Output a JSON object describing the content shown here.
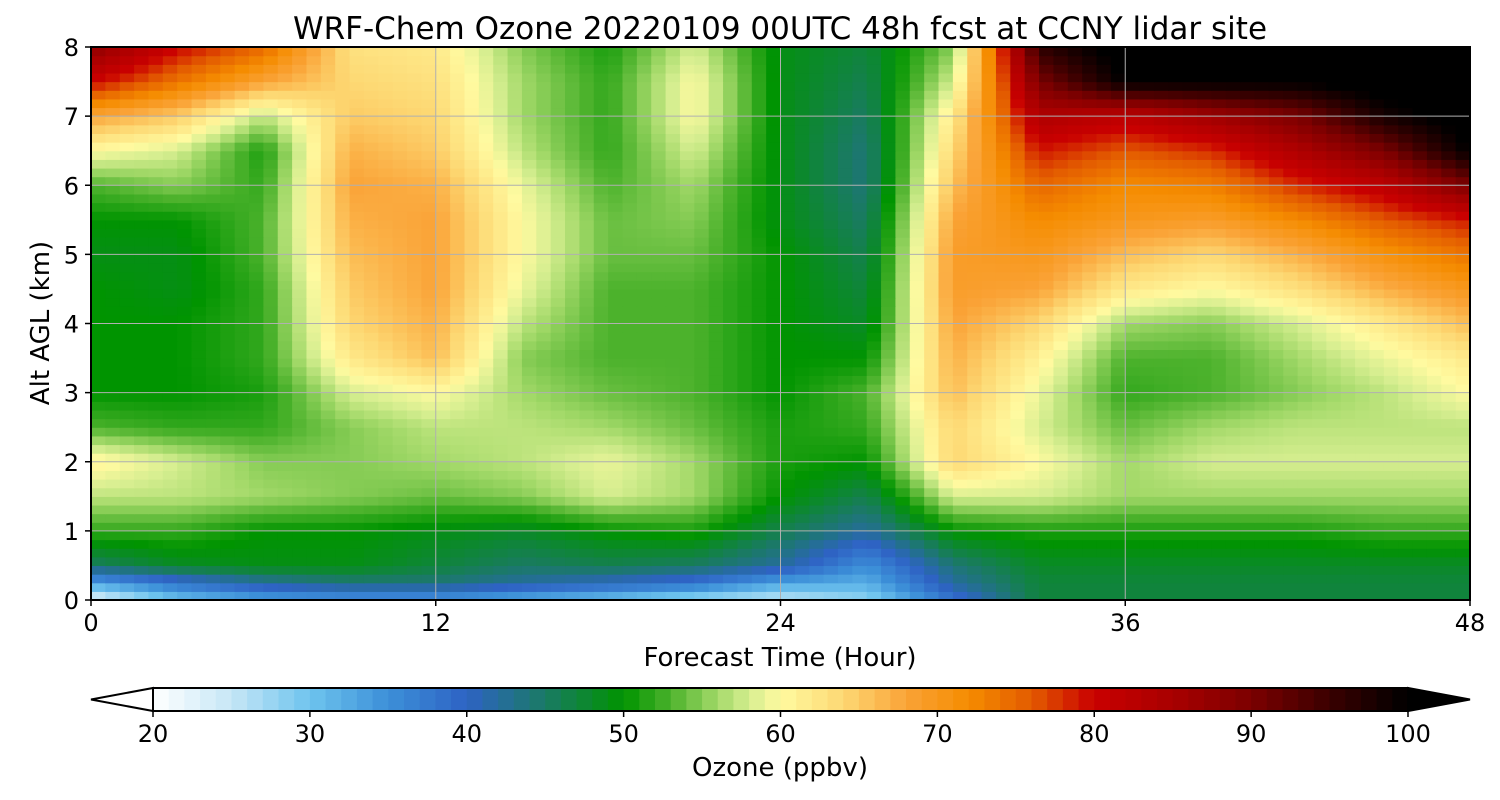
{
  "chart_data": [
    {
      "type": "heatmap",
      "title": "WRF-Chem Ozone  20220109 00UTC 48h fcst at CCNY lidar site",
      "xlabel": "Forecast Time (Hour)",
      "ylabel": "Alt AGL (km)",
      "xlim": [
        0,
        48
      ],
      "ylim": [
        0,
        8
      ],
      "xticks": [
        0,
        12,
        24,
        36,
        48
      ],
      "yticks": [
        0,
        1,
        2,
        3,
        4,
        5,
        6,
        7,
        8
      ],
      "grid": true,
      "x": [
        0,
        3,
        6,
        9,
        12,
        15,
        18,
        21,
        24,
        27,
        30,
        33,
        36,
        39,
        42,
        45,
        48
      ],
      "y": [
        0,
        0.25,
        0.5,
        1,
        1.5,
        2,
        2.5,
        3,
        3.5,
        4,
        4.5,
        5,
        5.5,
        6,
        6.5,
        7,
        7.5,
        8
      ],
      "z": [
        [
          22,
          30,
          33,
          34,
          34,
          32,
          30,
          27,
          25,
          28,
          38,
          47,
          47,
          47,
          47,
          47,
          47
        ],
        [
          33,
          38,
          42,
          44,
          44,
          42,
          40,
          38,
          33,
          32,
          42,
          47,
          47,
          47,
          47,
          47,
          47
        ],
        [
          45,
          48,
          49,
          49,
          47,
          45,
          46,
          45,
          42,
          35,
          44,
          48,
          48,
          48,
          48,
          48,
          48
        ],
        [
          52,
          52,
          50,
          50,
          49,
          48,
          50,
          51,
          46,
          42,
          50,
          51,
          51,
          51,
          51,
          52,
          52
        ],
        [
          57,
          57,
          56,
          55,
          54,
          55,
          58,
          56,
          50,
          46,
          58,
          58,
          56,
          56,
          56,
          56,
          56
        ],
        [
          61,
          58,
          55,
          55,
          56,
          57,
          59,
          56,
          51,
          50,
          64,
          60,
          56,
          58,
          58,
          58,
          58
        ],
        [
          53,
          52,
          52,
          55,
          57,
          57,
          56,
          54,
          51,
          52,
          64,
          58,
          54,
          56,
          57,
          57,
          57
        ],
        [
          50,
          50,
          51,
          58,
          60,
          56,
          54,
          53,
          50,
          53,
          66,
          59,
          52,
          53,
          55,
          57,
          60
        ],
        [
          50,
          50,
          52,
          62,
          66,
          55,
          53,
          53,
          50,
          50,
          67,
          61,
          53,
          53,
          56,
          59,
          62
        ],
        [
          50,
          50,
          52,
          64,
          67,
          57,
          53,
          53,
          50,
          48,
          68,
          64,
          56,
          55,
          58,
          62,
          66
        ],
        [
          50,
          49,
          52,
          65,
          68,
          59,
          53,
          53,
          50,
          47,
          69,
          68,
          62,
          60,
          63,
          67,
          70
        ],
        [
          49,
          49,
          53,
          66,
          68,
          60,
          54,
          54,
          50,
          46,
          69,
          70,
          66,
          64,
          67,
          71,
          74
        ],
        [
          50,
          50,
          53,
          67,
          68,
          60,
          54,
          55,
          49,
          45,
          68,
          72,
          70,
          69,
          72,
          76,
          79
        ],
        [
          53,
          55,
          52,
          68,
          67,
          59,
          53,
          56,
          49,
          44,
          66,
          75,
          72,
          73,
          78,
          82,
          90
        ],
        [
          60,
          58,
          51,
          67,
          65,
          57,
          52,
          58,
          49,
          44,
          64,
          79,
          76,
          78,
          84,
          90,
          100
        ],
        [
          68,
          65,
          57,
          65,
          64,
          56,
          52,
          60,
          49,
          45,
          62,
          84,
          82,
          86,
          90,
          98,
          102
        ],
        [
          80,
          74,
          68,
          64,
          63,
          56,
          52,
          60,
          49,
          46,
          58,
          90,
          100,
          100,
          100,
          102,
          102
        ],
        [
          88,
          80,
          75,
          63,
          62,
          55,
          51,
          58,
          49,
          47,
          55,
          96,
          102,
          102,
          102,
          102,
          102
        ]
      ],
      "colorbar": {
        "label": "Ozone  (ppbv)",
        "range": [
          20,
          100
        ],
        "ticks": [
          20,
          30,
          40,
          50,
          60,
          70,
          80,
          90,
          100
        ],
        "extend": "both",
        "orientation": "horizontal",
        "colors": {
          "20": "#ffffff",
          "25": "#c6e6f6",
          "30": "#6ec4ee",
          "35": "#3c8fd8",
          "40": "#2e63c4",
          "45": "#1a7a64",
          "50": "#009400",
          "53": "#4cb22c",
          "56": "#a3d969",
          "58": "#d6ee90",
          "60": "#fffaa0",
          "64": "#fdd873",
          "68": "#faa337",
          "72": "#f58c00",
          "76": "#e35b00",
          "80": "#c90000",
          "85": "#a80000",
          "90": "#7c0000",
          "95": "#3a0000",
          "100": "#000000"
        }
      }
    }
  ]
}
